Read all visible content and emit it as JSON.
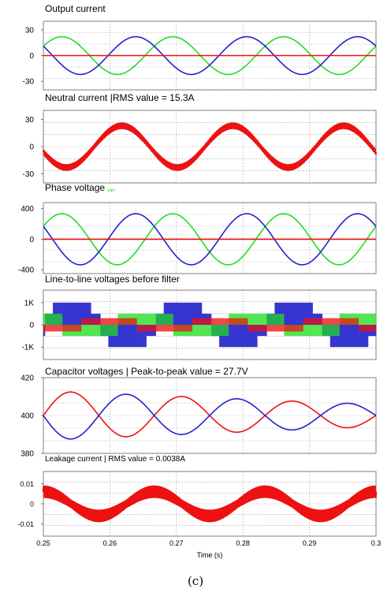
{
  "caption": "(c)",
  "x_axis": {
    "label": "Time (s)",
    "xlim": [
      0.25,
      0.3
    ],
    "ticks": [
      0.25,
      0.26,
      0.27,
      0.28,
      0.29,
      0.3
    ],
    "tick_labels": [
      "0.25",
      "0.26",
      "0.27",
      "0.28",
      "0.29",
      "0.3"
    ]
  },
  "colors": {
    "red": "#ee1111",
    "green": "#22dd22",
    "blue": "#2222cc",
    "grid": "#999999"
  },
  "chart_data": [
    {
      "type": "line",
      "title": "Output current",
      "ylim": [
        -40,
        40
      ],
      "yticks": [
        30,
        0,
        -30
      ],
      "ytick_labels": [
        "30",
        "0",
        "-30"
      ],
      "series": [
        {
          "color": "green",
          "wave": "sine",
          "amplitude": 22,
          "frequency_hz": 60,
          "phase_deg": 30,
          "offset": 0
        },
        {
          "color": "blue",
          "wave": "sine",
          "amplitude": 22,
          "frequency_hz": 60,
          "phase_deg": 150,
          "offset": 0
        },
        {
          "color": "red",
          "wave": "sine",
          "amplitude": 0,
          "frequency_hz": 60,
          "phase_deg": 0,
          "offset": 0
        }
      ]
    },
    {
      "type": "line",
      "title": "Neutral current |RMS value = 15.3A",
      "ylim": [
        -40,
        40
      ],
      "yticks": [
        30,
        0,
        -30
      ],
      "ytick_labels": [
        "30",
        "0",
        "-30"
      ],
      "series": [
        {
          "color": "red",
          "wave": "sine",
          "amplitude": 23,
          "frequency_hz": 60,
          "phase_deg": -165,
          "offset": 0,
          "ripple": 3
        }
      ]
    },
    {
      "type": "line",
      "title": "Phase voltage",
      "title_note": "van",
      "ylim": [
        -450,
        480
      ],
      "yticks": [
        400,
        0,
        -400
      ],
      "ytick_labels": [
        "400",
        "0",
        "-400"
      ],
      "series": [
        {
          "color": "green",
          "wave": "sine",
          "amplitude": 335,
          "frequency_hz": 60,
          "phase_deg": 30,
          "offset": 0
        },
        {
          "color": "blue",
          "wave": "sine",
          "amplitude": 335,
          "frequency_hz": 60,
          "phase_deg": 150,
          "offset": 0
        },
        {
          "color": "red",
          "wave": "sine",
          "amplitude": 0,
          "frequency_hz": 60,
          "phase_deg": 0,
          "offset": 0
        }
      ]
    },
    {
      "type": "line",
      "title": "Line-to-line voltages before filter",
      "ylim": [
        -1250,
        1250
      ],
      "yticks": [
        800,
        0,
        -800
      ],
      "ytick_labels": [
        "1K",
        "0",
        "-1K"
      ],
      "pwm_levels": [
        800,
        400,
        0,
        -400,
        -800
      ],
      "series": [
        {
          "color": "blue",
          "wave": "pwm",
          "amplitude": 800,
          "frequency_hz": 60,
          "phase_deg": 0
        },
        {
          "color": "green",
          "wave": "pwm",
          "amplitude": 400,
          "frequency_hz": 60,
          "phase_deg": 120
        },
        {
          "color": "red",
          "wave": "pwm",
          "amplitude": 400,
          "frequency_hz": 60,
          "phase_deg": 240
        }
      ]
    },
    {
      "type": "line",
      "title": "Capacitor voltages | Peak-to-peak value = 27.7V",
      "ylim": [
        380,
        420
      ],
      "yticks": [
        420,
        400,
        380
      ],
      "ytick_labels": [
        "420",
        "400",
        "380"
      ],
      "series": [
        {
          "color": "red",
          "wave": "sine",
          "amplitude": 13,
          "frequency_hz": 60,
          "phase_deg": 0,
          "offset": 400,
          "decay": true
        },
        {
          "color": "blue",
          "wave": "sine",
          "amplitude": 13,
          "frequency_hz": 60,
          "phase_deg": 180,
          "offset": 400,
          "decay": true
        }
      ]
    },
    {
      "type": "line",
      "title": "Leakage current | RMS value = 0.0038A",
      "ylim": [
        -0.016,
        0.016
      ],
      "yticks": [
        0.01,
        0,
        -0.01
      ],
      "ytick_labels": [
        "0.01",
        "0",
        "-0.01"
      ],
      "series": [
        {
          "color": "red",
          "wave": "sine",
          "amplitude": 0.006,
          "frequency_hz": 60,
          "phase_deg": 90,
          "offset": 0,
          "ripple": 0.003
        }
      ]
    }
  ]
}
